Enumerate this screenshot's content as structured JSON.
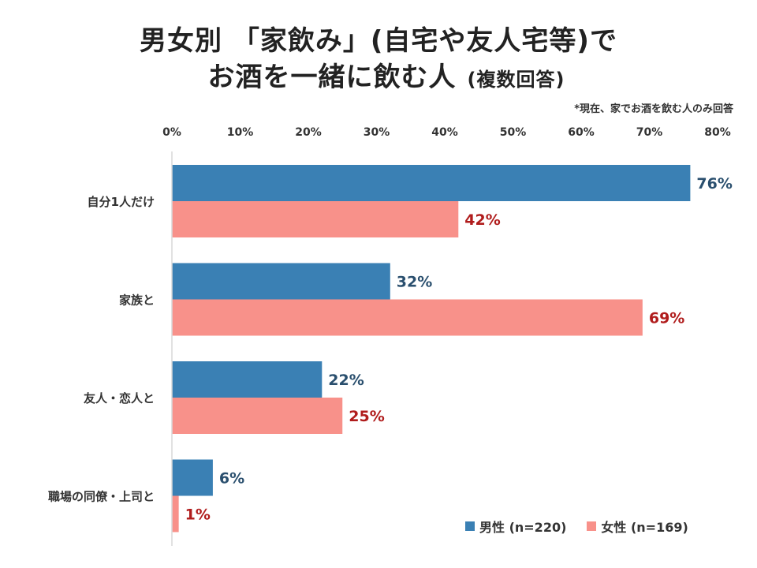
{
  "chart_data": {
    "type": "bar",
    "orientation": "horizontal",
    "title_line1": "男女別 「家飲み」(自宅や友人宅等)で",
    "title_line2": "お酒を一緒に飲む人",
    "title_suffix": "(複数回答)",
    "note": "*現在、家でお酒を飲む人のみ回答",
    "categories": [
      "自分1人だけ",
      "家族と",
      "友人・恋人と",
      "職場の同僚・上司と"
    ],
    "series": [
      {
        "name": "男性 (n=220)",
        "values": [
          76,
          32,
          22,
          6
        ],
        "color": "#3a80b4",
        "label_color": "#2a4f6e"
      },
      {
        "name": "女性 (n=169)",
        "values": [
          42,
          69,
          25,
          1
        ],
        "color": "#f8918a",
        "label_color": "#b01c1c"
      }
    ],
    "xlim": [
      0,
      80
    ],
    "xticks": [
      0,
      10,
      20,
      30,
      40,
      50,
      60,
      70,
      80
    ],
    "tick_suffix": "%",
    "value_suffix": "%",
    "xlabel": "",
    "ylabel": "",
    "legend_position": "bottom-right"
  }
}
